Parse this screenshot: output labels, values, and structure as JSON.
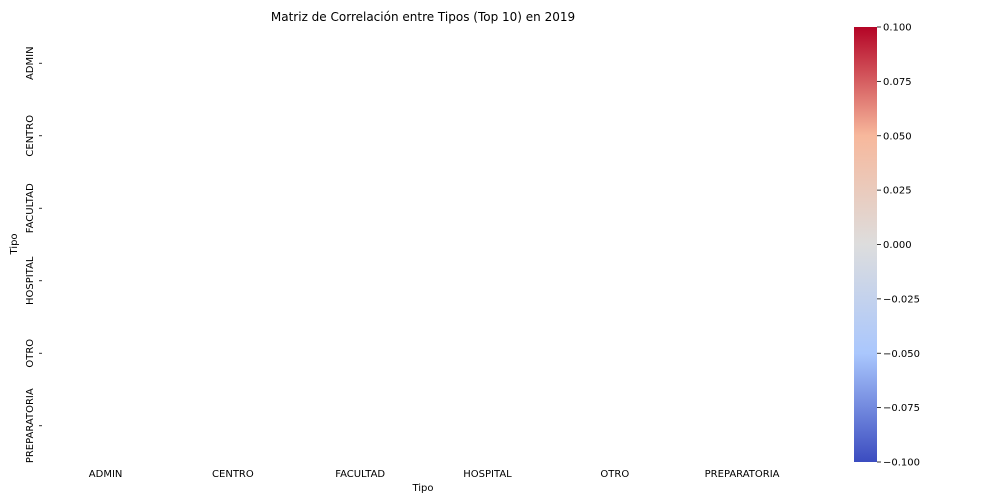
{
  "chart_data": {
    "type": "heatmap",
    "title": "Matriz de Correlación entre Tipos (Top 10) en 2019",
    "xlabel": "Tipo",
    "ylabel": "Tipo",
    "x_categories": [
      "ADMIN",
      "CENTRO",
      "FACULTAD",
      "HOSPITAL",
      "OTRO",
      "PREPARATORIA"
    ],
    "y_categories": [
      "ADMIN",
      "CENTRO",
      "FACULTAD",
      "HOSPITAL",
      "OTRO",
      "PREPARATORIA"
    ],
    "values": [
      [
        null,
        null,
        null,
        null,
        null,
        null
      ],
      [
        null,
        null,
        null,
        null,
        null,
        null
      ],
      [
        null,
        null,
        null,
        null,
        null,
        null
      ],
      [
        null,
        null,
        null,
        null,
        null,
        null
      ],
      [
        null,
        null,
        null,
        null,
        null,
        null
      ],
      [
        null,
        null,
        null,
        null,
        null,
        null
      ]
    ],
    "colorbar": {
      "colormap": "coolwarm",
      "vmin": -0.1,
      "vmax": 0.1,
      "ticks": [
        "0.100",
        "0.075",
        "0.050",
        "0.025",
        "0.000",
        "−0.025",
        "−0.050",
        "−0.075",
        "−0.100"
      ],
      "tick_values": [
        0.1,
        0.075,
        0.05,
        0.025,
        0.0,
        -0.025,
        -0.05,
        -0.075,
        -0.1
      ],
      "colors": [
        "#b40426",
        "#f7b89c",
        "#dddddd",
        "#aac7fd",
        "#3b4cc0"
      ]
    },
    "grid": false
  }
}
